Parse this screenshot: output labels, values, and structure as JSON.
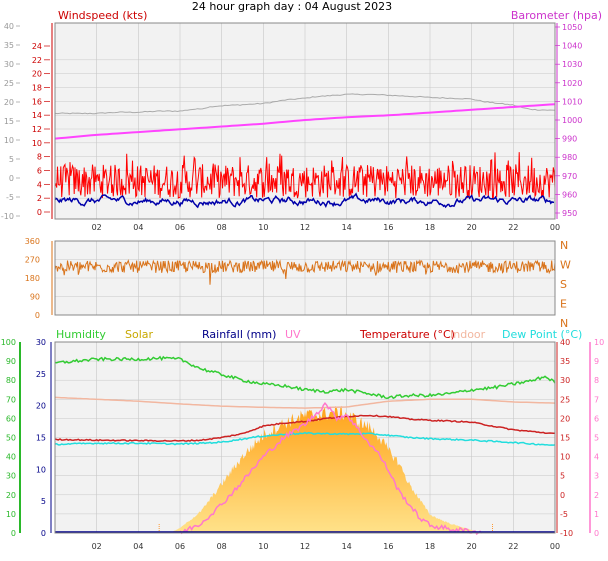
{
  "title": "24 hour graph day : 04 August 2023",
  "x_tick_labels": [
    "02",
    "04",
    "06",
    "08",
    "10",
    "12",
    "14",
    "16",
    "18",
    "20",
    "22",
    "00"
  ],
  "colors": {
    "plot_bg": "#f2f2f2",
    "grid": "#c8c8c8",
    "windspeed": "#ff0000",
    "windavg": "#0000aa",
    "barometer": "#ff44ff",
    "gust_max": "#aaaaaa",
    "winddir": "#d9731a",
    "humidity": "#33cc33",
    "solar": "#ffb733",
    "rainfall": "#000088",
    "uv": "#ff77cc",
    "temperature": "#cc2222",
    "indoor": "#f2b7a0",
    "dewpoint": "#22dddd"
  },
  "chart_data": [
    {
      "type": "line",
      "name": "wind-barometer",
      "left_axis_label": "Windspeed (kts)",
      "right_axis_label": "Barometer (hpa)",
      "left_ticks": [
        "-10",
        "-5",
        "0",
        "5",
        "10",
        "15",
        "20",
        "25",
        "30",
        "35",
        "40"
      ],
      "left_ticks_red": [
        "0",
        "2",
        "4",
        "6",
        "8",
        "10",
        "12",
        "14",
        "16",
        "18",
        "20",
        "22",
        "24"
      ],
      "right_ticks": [
        "950",
        "960",
        "970",
        "980",
        "990",
        "1000",
        "1010",
        "1020",
        "1030",
        "1040",
        "1050"
      ],
      "right_ticks_lower": [
        "980",
        "960"
      ],
      "ylim_kts_left": [
        -1,
        25
      ],
      "ylim_hpa": [
        950,
        1050
      ],
      "grey_trace_hours": [
        0,
        2,
        3,
        4,
        5,
        6,
        6.5,
        7,
        7.5,
        8,
        9,
        10,
        10.5,
        11,
        12,
        12.5,
        13,
        14,
        15,
        16,
        17,
        18,
        19,
        20,
        20.5,
        21,
        22,
        22.5,
        23,
        24
      ],
      "grey_trace_values": [
        17,
        17,
        17.3,
        17.3,
        17.6,
        17.6,
        18,
        18.2,
        18.8,
        19,
        19.3,
        19.6,
        20,
        20.5,
        21,
        21.4,
        21.6,
        22,
        22,
        21.8,
        21.5,
        21.2,
        21,
        20.8,
        20.2,
        19.8,
        19.2,
        18.4,
        18,
        17.8
      ],
      "barometer_hours": [
        0,
        2,
        4,
        6,
        8,
        10,
        12,
        14,
        16,
        18,
        20,
        22,
        24
      ],
      "barometer_values": [
        990,
        992,
        993.5,
        995,
        996.5,
        998,
        1000,
        1001.5,
        1002.5,
        1004,
        1005.5,
        1007,
        1008.5
      ],
      "wind_mean_kts": 5.5,
      "wind_range_kts": [
        2,
        9
      ],
      "avg_mean_kts": 1.6,
      "avg_range_kts": [
        0,
        3
      ]
    },
    {
      "type": "line",
      "name": "wind-direction",
      "right_axis_label": "",
      "compass_labels": [
        "N",
        "W",
        "S",
        "E",
        "N"
      ],
      "left_ticks": [
        "0",
        "90",
        "180",
        "270",
        "360"
      ],
      "ylim_deg": [
        0,
        360
      ],
      "mean_deg": 235,
      "range_deg": [
        205,
        265
      ]
    },
    {
      "type": "area",
      "name": "humidity-temperature",
      "legend": [
        "Humidity",
        "Solar",
        "Rainfall (mm)",
        "UV",
        "Temperature (°C)",
        "Indoor",
        "Dew Point (°C)"
      ],
      "left_ticks_humidity": [
        "0",
        "10",
        "20",
        "30",
        "40",
        "50",
        "60",
        "70",
        "80",
        "90",
        "100"
      ],
      "left_ticks_rainfall": [
        "0",
        "5",
        "10",
        "15",
        "20",
        "25",
        "30"
      ],
      "right_ticks_temperature": [
        "-10",
        "-5",
        "0",
        "5",
        "10",
        "15",
        "20",
        "25",
        "30",
        "35",
        "40"
      ],
      "right_ticks_uv": [
        "0",
        "1",
        "2",
        "3",
        "4",
        "5",
        "6",
        "7",
        "8",
        "9",
        "10"
      ],
      "temperature_hours": [
        0,
        2,
        4,
        6,
        7,
        8,
        9,
        10,
        11,
        12,
        13,
        14,
        15,
        16,
        17,
        18,
        19,
        20,
        21,
        22,
        23,
        24
      ],
      "temperature_values": [
        14.5,
        14.3,
        14.2,
        14.1,
        14.3,
        15,
        16,
        18,
        18.8,
        19.2,
        20,
        20.5,
        20.8,
        20.5,
        19.8,
        19.5,
        19.3,
        19,
        18,
        17,
        16.5,
        16
      ],
      "dewpoint_hours": [
        0,
        2,
        4,
        6,
        7,
        8,
        9,
        10,
        11,
        12,
        13,
        14,
        15,
        16,
        17,
        18,
        19,
        20,
        21,
        22,
        23,
        24
      ],
      "dewpoint_values": [
        13.2,
        13.5,
        13.5,
        13.3,
        13.5,
        13.8,
        14.6,
        15.4,
        15.8,
        16.1,
        16,
        15.9,
        16,
        15.6,
        15,
        14.7,
        14.5,
        14.3,
        14,
        13.7,
        13.3,
        13
      ],
      "indoor_hours": [
        0,
        2,
        4,
        6,
        8,
        10,
        12,
        14,
        16,
        18,
        20,
        22,
        24
      ],
      "indoor_values": [
        25.5,
        25,
        24.5,
        23.8,
        23.2,
        22.9,
        22.7,
        23,
        24.5,
        25,
        25,
        24.3,
        24
      ],
      "humidity_hours": [
        0,
        2,
        3,
        4,
        5,
        6,
        7,
        8,
        9,
        10,
        11,
        12,
        13,
        14,
        15,
        16,
        17,
        18,
        19,
        20,
        21,
        22,
        23,
        23.5,
        24
      ],
      "humidity_values": [
        89,
        91,
        91,
        91,
        91.5,
        91,
        86,
        83,
        80,
        78,
        77,
        75,
        74,
        75,
        73,
        71,
        72,
        72,
        73,
        75,
        76,
        78,
        80,
        82,
        79
      ],
      "solar_hours": [
        5.5,
        6,
        7,
        8,
        9,
        10,
        11,
        12,
        13,
        13.5,
        14,
        14.5,
        15,
        15.5,
        16,
        16.5,
        17,
        17.5,
        18,
        18.5,
        19,
        19.5,
        20,
        20.5
      ],
      "solar_values_scaled_mm": [
        0,
        0.8,
        3.5,
        8,
        12.5,
        16,
        18,
        19.2,
        19.5,
        19.7,
        19.5,
        18.3,
        17.5,
        16,
        13.5,
        11.5,
        8,
        5.5,
        3,
        2.2,
        1.5,
        1,
        0.5,
        0
      ],
      "uv_hours": [
        6,
        7,
        8,
        9,
        10,
        11,
        12,
        12.5,
        13,
        13.5,
        14,
        14.5,
        15,
        15.5,
        16,
        16.5,
        17,
        17.5,
        18,
        19,
        20,
        20.5
      ],
      "uv_values": [
        0,
        0.5,
        1.5,
        2.7,
        4,
        5,
        5.7,
        6.2,
        6.8,
        6,
        6.2,
        5.5,
        4.8,
        4.2,
        3.3,
        2.2,
        1.5,
        0.8,
        0.4,
        0.2,
        0.1,
        0
      ]
    }
  ]
}
